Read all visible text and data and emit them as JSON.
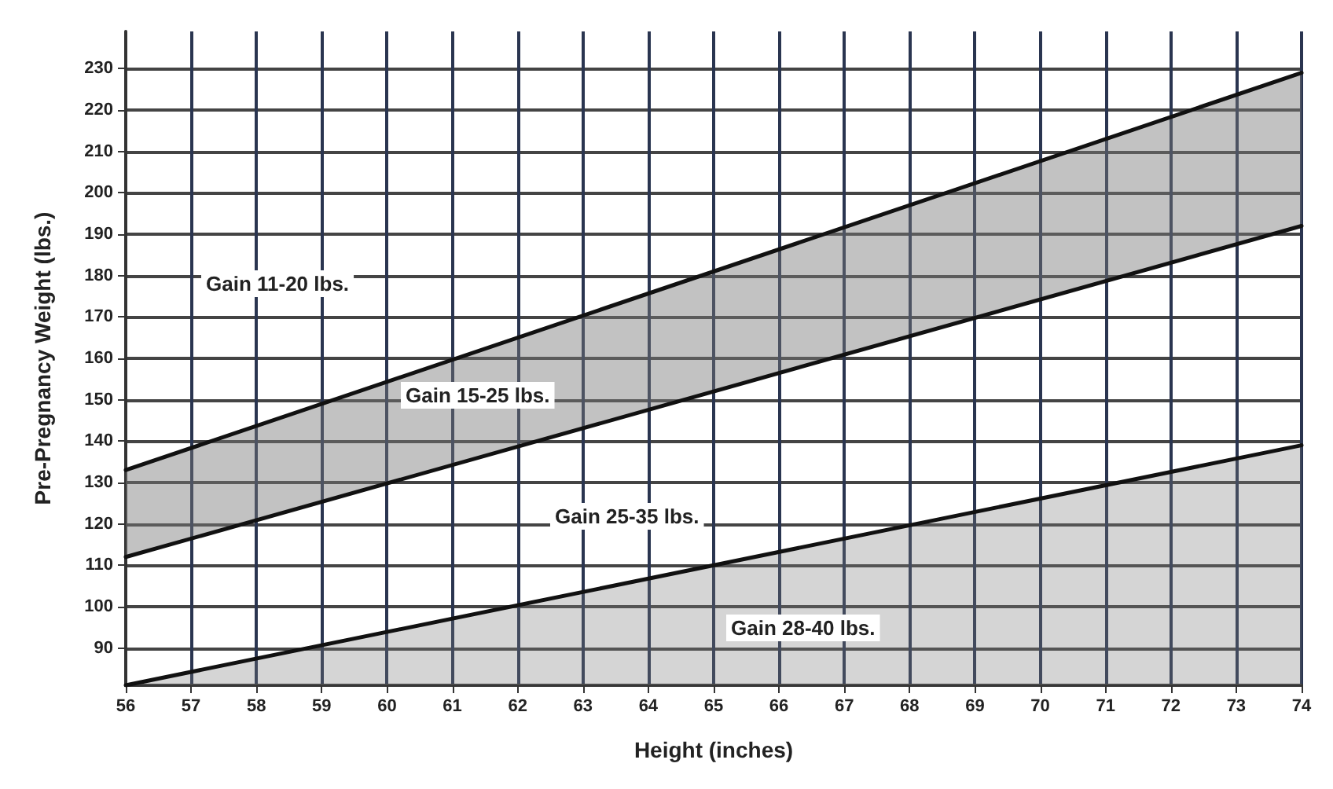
{
  "chart_data": {
    "type": "line",
    "xlabel": "Height (inches)",
    "ylabel": "Pre-Pregnancy Weight (lbs.)",
    "xlim": [
      56,
      74
    ],
    "xticks": [
      56,
      57,
      58,
      59,
      60,
      61,
      62,
      63,
      64,
      65,
      66,
      67,
      68,
      69,
      70,
      71,
      72,
      73,
      74
    ],
    "ylim": [
      81,
      239
    ],
    "yticks": [
      90,
      100,
      110,
      120,
      130,
      140,
      150,
      160,
      170,
      180,
      190,
      200,
      210,
      220,
      230
    ],
    "grid": true,
    "marker": "none",
    "line_style": "solid",
    "series": [
      {
        "color": "#111111",
        "values": [
          133,
          229
        ]
      },
      {
        "color": "#111111",
        "values": [
          112,
          192
        ],
        "lower": [
          112,
          192
        ],
        "upper": [
          133,
          229
        ]
      },
      {
        "type": "area",
        "color": "#111111",
        "values": [
          81,
          139
        ]
      }
    ],
    "x": [
      56,
      74
    ],
    "annotations": [
      "Gain 11-20 lbs.",
      "Gain 15-25 lbs.",
      "Gain 25-35 lbs.",
      "Gain 28-40 lbs."
    ]
  }
}
